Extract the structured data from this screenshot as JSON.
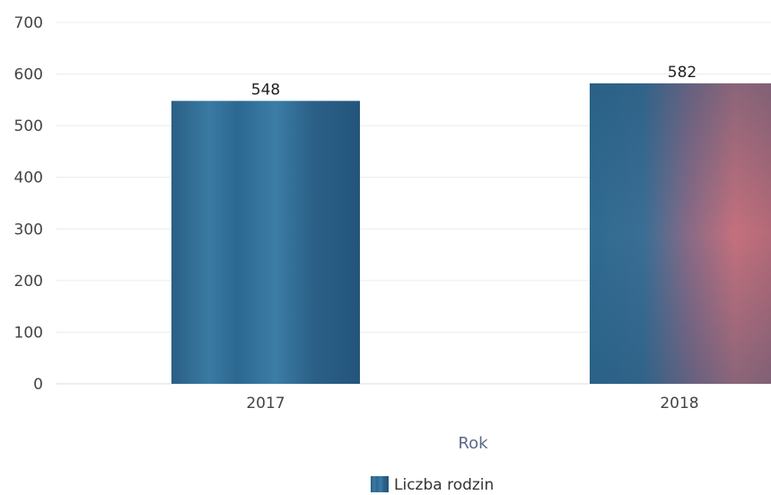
{
  "chart_data": {
    "type": "bar",
    "categories": [
      "2017",
      "2018"
    ],
    "series": [
      {
        "name": "Liczba rodzin",
        "values": [
          548,
          582
        ]
      }
    ],
    "xlabel": "Rok",
    "ylabel": "",
    "ylim": [
      0,
      700
    ],
    "yticks": [
      "0",
      "100",
      "200",
      "300",
      "400",
      "500",
      "600",
      "700"
    ],
    "grid": true,
    "legend": "bottom-center",
    "colors": {
      "bar": "#2f6a91",
      "bar_highlight": "#c0707a",
      "highlight_label": "#b5434f",
      "grid": "#ececec"
    }
  }
}
